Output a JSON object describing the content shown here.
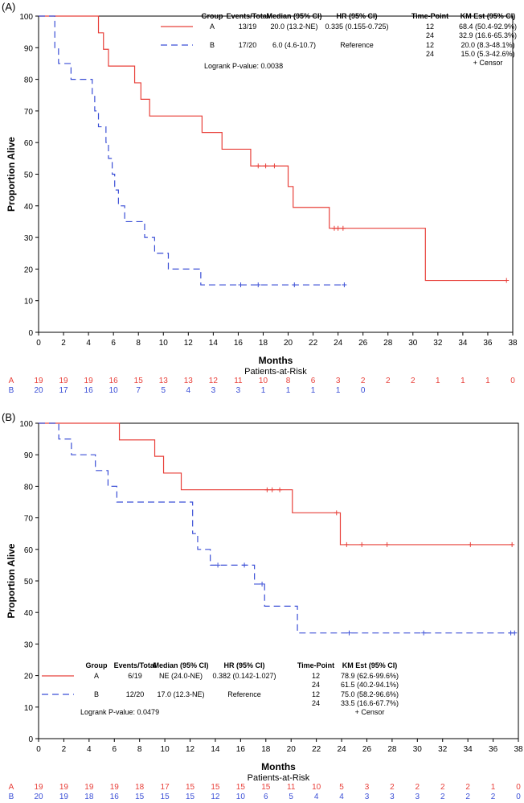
{
  "chart_data": [
    {
      "type": "line",
      "step": true,
      "panel_label": "(A)",
      "xlabel": "Months",
      "ylabel": "Proportion Alive",
      "xlim": [
        0,
        38
      ],
      "ylim": [
        0,
        100
      ],
      "xticks": [
        0,
        2,
        4,
        6,
        8,
        10,
        12,
        14,
        16,
        18,
        20,
        22,
        24,
        26,
        28,
        30,
        32,
        34,
        36,
        38
      ],
      "yticks": [
        0,
        10,
        20,
        30,
        40,
        50,
        60,
        70,
        80,
        90,
        100
      ],
      "legend_position": "top-right",
      "colors": {
        "A": "#e8403a",
        "B": "#3b4fd6"
      },
      "legend": {
        "headers": {
          "group": "Group",
          "events": "Events/Total",
          "median": "Median (95% CI)",
          "hr": "HR (95% CI)",
          "timepoint": "Time-Point",
          "km": "KM Est (95% CI)"
        },
        "rows": [
          {
            "group": "A",
            "events": "13/19",
            "median": "20.0 (13.2-NE)",
            "hr": "0.335 (0.155-0.725)",
            "tp": [
              "12",
              "24"
            ],
            "km": [
              "68.4 (50.4-92.9%)",
              "32.9 (16.6-65.3%)"
            ]
          },
          {
            "group": "B",
            "events": "17/20",
            "median": "6.0 (4.6-10.7)",
            "hr": "Reference",
            "tp": [
              "12",
              "24"
            ],
            "km": [
              "20.0 (8.3-48.1%)",
              "15.0 (5.3-42.6%)"
            ]
          }
        ],
        "logrank": "Logrank P-value: 0.0038",
        "censor": "+ Censor"
      },
      "series": [
        {
          "name": "A",
          "x": [
            0,
            4.8,
            5.2,
            5.6,
            7.7,
            8.2,
            8.9,
            13.1,
            14.7,
            17.0,
            20.0,
            20.4,
            23.3,
            31.0,
            37.5
          ],
          "y": [
            100,
            94.7,
            89.5,
            84.2,
            78.9,
            73.7,
            68.4,
            63.2,
            57.9,
            52.6,
            46.1,
            39.5,
            32.9,
            16.4,
            16.4
          ],
          "censored": [
            [
              17.6,
              52.6
            ],
            [
              18.2,
              52.6
            ],
            [
              18.9,
              52.6
            ],
            [
              23.7,
              32.9
            ],
            [
              24.0,
              32.9
            ],
            [
              24.4,
              32.9
            ],
            [
              37.5,
              16.4
            ]
          ]
        },
        {
          "name": "B",
          "x": [
            0,
            1.3,
            1.6,
            2.6,
            4.3,
            4.5,
            4.8,
            5.4,
            5.6,
            5.9,
            6.1,
            6.4,
            6.9,
            8.5,
            9.3,
            10.4,
            10.8,
            13.0,
            24.5
          ],
          "y": [
            100,
            90,
            85,
            80,
            75,
            70,
            65,
            60,
            55,
            50,
            45,
            40,
            35,
            30,
            25,
            20,
            20,
            15,
            15
          ],
          "censored": [
            [
              16.2,
              15
            ],
            [
              17.6,
              15
            ],
            [
              20.5,
              15
            ],
            [
              24.5,
              15
            ]
          ]
        }
      ],
      "risk_table": {
        "title": "Patients-at-Risk",
        "rows": [
          {
            "group": "A",
            "values": [
              "19",
              "19",
              "19",
              "16",
              "15",
              "13",
              "13",
              "12",
              "11",
              "10",
              "8",
              "6",
              "3",
              "2",
              "2",
              "2",
              "1",
              "1",
              "1",
              "0"
            ]
          },
          {
            "group": "B",
            "values": [
              "20",
              "17",
              "16",
              "10",
              "7",
              "5",
              "4",
              "3",
              "3",
              "1",
              "1",
              "1",
              "1",
              "0"
            ]
          }
        ]
      }
    },
    {
      "type": "line",
      "step": true,
      "panel_label": "(B)",
      "xlabel": "Months",
      "ylabel": "Proportion Alive",
      "xlim": [
        0,
        38
      ],
      "ylim": [
        0,
        100
      ],
      "xticks": [
        0,
        2,
        4,
        6,
        8,
        10,
        12,
        14,
        16,
        18,
        20,
        22,
        24,
        26,
        28,
        30,
        32,
        34,
        36,
        38
      ],
      "yticks": [
        0,
        10,
        20,
        30,
        40,
        50,
        60,
        70,
        80,
        90,
        100
      ],
      "legend_position": "bottom-left",
      "colors": {
        "A": "#e8403a",
        "B": "#3b4fd6"
      },
      "legend": {
        "headers": {
          "group": "Group",
          "events": "Events/Total",
          "median": "Median (95% CI)",
          "hr": "HR (95% CI)",
          "timepoint": "Time-Point",
          "km": "KM Est (95% CI)"
        },
        "rows": [
          {
            "group": "A",
            "events": "6/19",
            "median": "NE (24.0-NE)",
            "hr": "0.382 (0.142-1.027)",
            "tp": [
              "12",
              "24"
            ],
            "km": [
              "78.9 (62.6-99.6%)",
              "61.5 (40.2-94.1%)"
            ]
          },
          {
            "group": "B",
            "events": "12/20",
            "median": "17.0 (12.3-NE)",
            "hr": "Reference",
            "tp": [
              "12",
              "24"
            ],
            "km": [
              "75.0 (58.2-96.6%)",
              "33.5 (16.6-67.7%)"
            ]
          }
        ],
        "logrank": "Logrank P-value: 0.0479",
        "censor": "+ Censor"
      },
      "series": [
        {
          "name": "A",
          "x": [
            0,
            6.4,
            9.2,
            9.9,
            11.3,
            20.1,
            23.9,
            37.5
          ],
          "y": [
            100,
            94.7,
            89.5,
            84.2,
            78.9,
            71.6,
            61.5,
            61.5
          ],
          "censored": [
            [
              18.1,
              78.9
            ],
            [
              18.5,
              78.9
            ],
            [
              19.1,
              78.9
            ],
            [
              23.6,
              71.6
            ],
            [
              24.4,
              61.5
            ],
            [
              25.6,
              61.5
            ],
            [
              27.6,
              61.5
            ],
            [
              34.2,
              61.5
            ],
            [
              37.5,
              61.5
            ]
          ]
        },
        {
          "name": "B",
          "x": [
            0,
            1.6,
            2.6,
            4.5,
            5.5,
            6.2,
            12.2,
            12.6,
            13.6,
            17.1,
            17.5,
            17.9,
            20.5,
            37.7
          ],
          "y": [
            100,
            95,
            90,
            85,
            80,
            75,
            65,
            60,
            55,
            49,
            49,
            42,
            33.5,
            33.5
          ],
          "censored": [
            [
              14.2,
              55
            ],
            [
              16.3,
              55
            ],
            [
              17.7,
              49
            ],
            [
              24.6,
              33.5
            ],
            [
              30.5,
              33.5
            ],
            [
              37.4,
              33.5
            ],
            [
              37.7,
              33.5
            ]
          ]
        }
      ],
      "risk_table": {
        "title": "Patients-at-Risk",
        "rows": [
          {
            "group": "A",
            "values": [
              "19",
              "19",
              "19",
              "19",
              "18",
              "17",
              "15",
              "15",
              "15",
              "15",
              "11",
              "10",
              "5",
              "3",
              "2",
              "2",
              "2",
              "2",
              "1",
              "0"
            ]
          },
          {
            "group": "B",
            "values": [
              "20",
              "19",
              "18",
              "16",
              "15",
              "15",
              "15",
              "12",
              "10",
              "6",
              "5",
              "4",
              "4",
              "3",
              "3",
              "3",
              "2",
              "2",
              "2",
              "0"
            ]
          }
        ]
      }
    }
  ]
}
